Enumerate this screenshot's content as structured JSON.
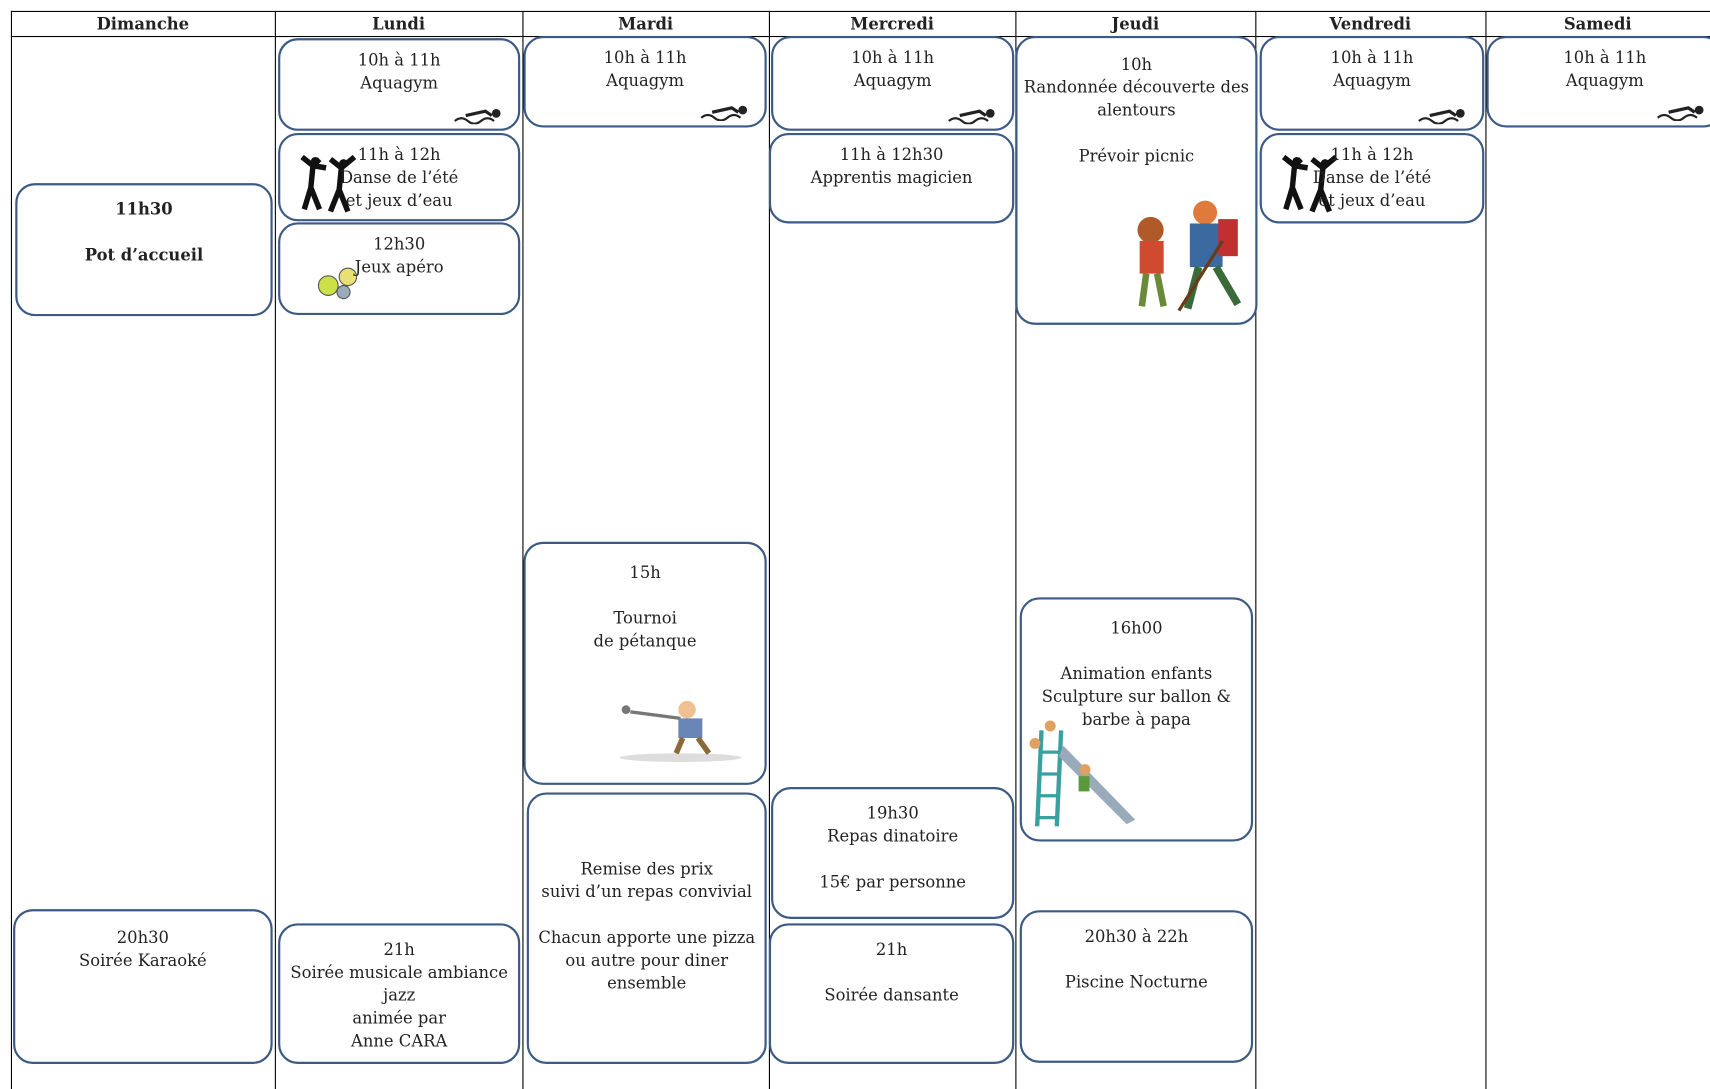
{
  "days": [
    {
      "name": "Dimanche",
      "events": [
        {
          "paragraphs": [
            [
              "11h30"
            ],
            [
              "Pot d’accueil"
            ]
          ]
        },
        {
          "paragraphs": [
            [
              "20h30",
              "Soirée Karaoké"
            ]
          ]
        }
      ]
    },
    {
      "name": "Lundi",
      "events": [
        {
          "paragraphs": [
            [
              "10h à 11h",
              "Aquagym"
            ]
          ]
        },
        {
          "paragraphs": [
            [
              "11h à 12h",
              "Danse de l’été",
              "et jeux d’eau"
            ]
          ]
        },
        {
          "paragraphs": [
            [
              "12h30",
              "Jeux apéro"
            ]
          ]
        },
        {
          "paragraphs": [
            [
              "21h",
              "Soirée musicale ambiance",
              "jazz",
              "animée par",
              "Anne CARA"
            ]
          ]
        }
      ]
    },
    {
      "name": "Mardi",
      "events": [
        {
          "paragraphs": [
            [
              "10h à 11h",
              "Aquagym"
            ]
          ]
        },
        {
          "paragraphs": [
            [
              "15h"
            ],
            [
              "Tournoi",
              "de pétanque"
            ]
          ]
        },
        {
          "paragraphs": [
            [
              "Remise des prix",
              "suivi d’un repas convivial"
            ],
            [
              "Chacun apporte une pizza",
              "ou autre pour diner",
              "ensemble"
            ]
          ]
        }
      ]
    },
    {
      "name": "Mercredi",
      "events": [
        {
          "paragraphs": [
            [
              "10h à 11h",
              "Aquagym"
            ]
          ]
        },
        {
          "paragraphs": [
            [
              "11h à 12h30",
              "Apprentis magicien"
            ]
          ]
        },
        {
          "paragraphs": [
            [
              "19h30",
              "Repas dinatoire"
            ],
            [
              "15€ par personne"
            ]
          ]
        },
        {
          "paragraphs": [
            [
              "21h"
            ],
            [
              "Soirée dansante"
            ]
          ]
        }
      ]
    },
    {
      "name": "Jeudi",
      "events": [
        {
          "paragraphs": [
            [
              "10h",
              "Randonnée découverte des",
              "alentours"
            ],
            [
              "Prévoir picnic"
            ]
          ]
        },
        {
          "paragraphs": [
            [
              "16h00"
            ],
            [
              "Animation enfants",
              "Sculpture sur ballon &",
              "barbe à papa"
            ]
          ]
        },
        {
          "paragraphs": [
            [
              "20h30 à 22h"
            ],
            [
              "Piscine Nocturne"
            ]
          ]
        }
      ]
    },
    {
      "name": "Vendredi",
      "events": [
        {
          "paragraphs": [
            [
              "10h à 11h",
              "Aquagym"
            ]
          ]
        },
        {
          "paragraphs": [
            [
              "11h à 12h",
              "Danse de l’été",
              "et jeux d’eau"
            ]
          ]
        }
      ]
    },
    {
      "name": "Samedi",
      "events": [
        {
          "paragraphs": [
            [
              "10h à 11h",
              "Aquagym"
            ]
          ]
        }
      ]
    }
  ]
}
